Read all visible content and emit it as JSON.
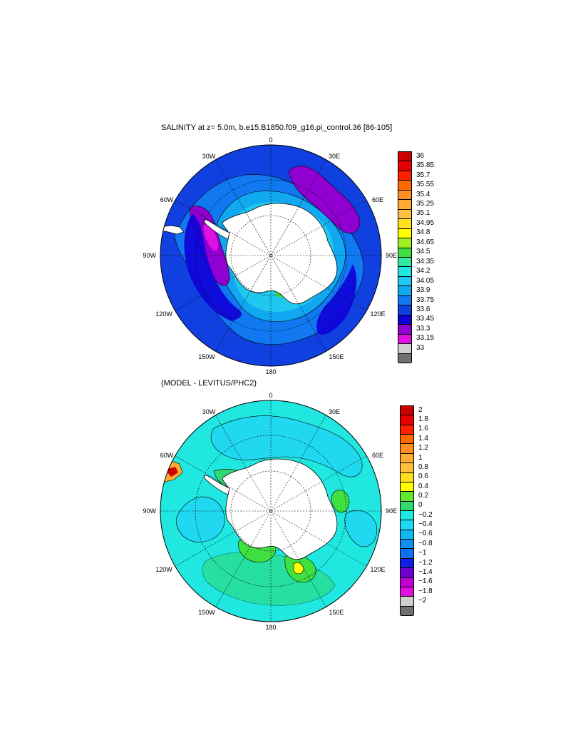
{
  "panels": [
    {
      "id": "salinity",
      "title": "SALINITY at z=   5.0m, b.e15.B1850.f09_g16.pi_control.36 [86-105]",
      "lon_labels": {
        "top": "0",
        "tl": "30W",
        "tr": "30E",
        "ul": "60W",
        "ur": "60E",
        "left": "90W",
        "right": "90E",
        "ll": "120W",
        "lr": "120E",
        "bl": "150W",
        "br": "150E",
        "bottom": "180"
      },
      "colorbar": {
        "labels": [
          "36",
          "35.85",
          "35.7",
          "35.55",
          "35.4",
          "35.25",
          "35.1",
          "34.95",
          "34.8",
          "34.65",
          "34.5",
          "34.35",
          "34.2",
          "34.05",
          "33.9",
          "33.75",
          "33.6",
          "33.45",
          "33.3",
          "33.15",
          "33"
        ],
        "colors": [
          "#c80000",
          "#e60000",
          "#ff2000",
          "#ff6a00",
          "#ff9020",
          "#ffaa30",
          "#ffc040",
          "#ffe020",
          "#ffff00",
          "#a0f020",
          "#40e040",
          "#30e8a0",
          "#20e8e0",
          "#20c8f0",
          "#10a8f0",
          "#1078f0",
          "#1040e0",
          "#1000d8",
          "#9000d0",
          "#e010e0",
          "#d0d0d0",
          "#707070"
        ]
      }
    },
    {
      "id": "difference",
      "title": "(MODEL - LEVITUS/PHC2)",
      "lon_labels": {
        "top": "0",
        "tl": "30W",
        "tr": "30E",
        "ul": "60W",
        "ur": "60E",
        "left": "90W",
        "right": "90E",
        "ll": "120W",
        "lr": "120E",
        "bl": "150W",
        "br": "150E",
        "bottom": "180"
      },
      "colorbar": {
        "labels": [
          "2",
          "1.8",
          "1.6",
          "1.4",
          "1.2",
          "1",
          "0.8",
          "0.6",
          "0.4",
          "0.2",
          "0",
          "−0.2",
          "−0.4",
          "−0.6",
          "−0.8",
          "−1",
          "−1.2",
          "−1.4",
          "−1.6",
          "−1.8",
          "−2"
        ],
        "colors": [
          "#c80000",
          "#e60000",
          "#ff2000",
          "#ff6a00",
          "#ff9020",
          "#ffaa30",
          "#ffc040",
          "#ffe020",
          "#ffff00",
          "#60e830",
          "#30d870",
          "#20e8e0",
          "#20d8f0",
          "#10b8f0",
          "#1090f0",
          "#1070f0",
          "#1020e0",
          "#7000d0",
          "#c000d0",
          "#e010e0",
          "#d0d0d0",
          "#707070"
        ]
      }
    }
  ]
}
